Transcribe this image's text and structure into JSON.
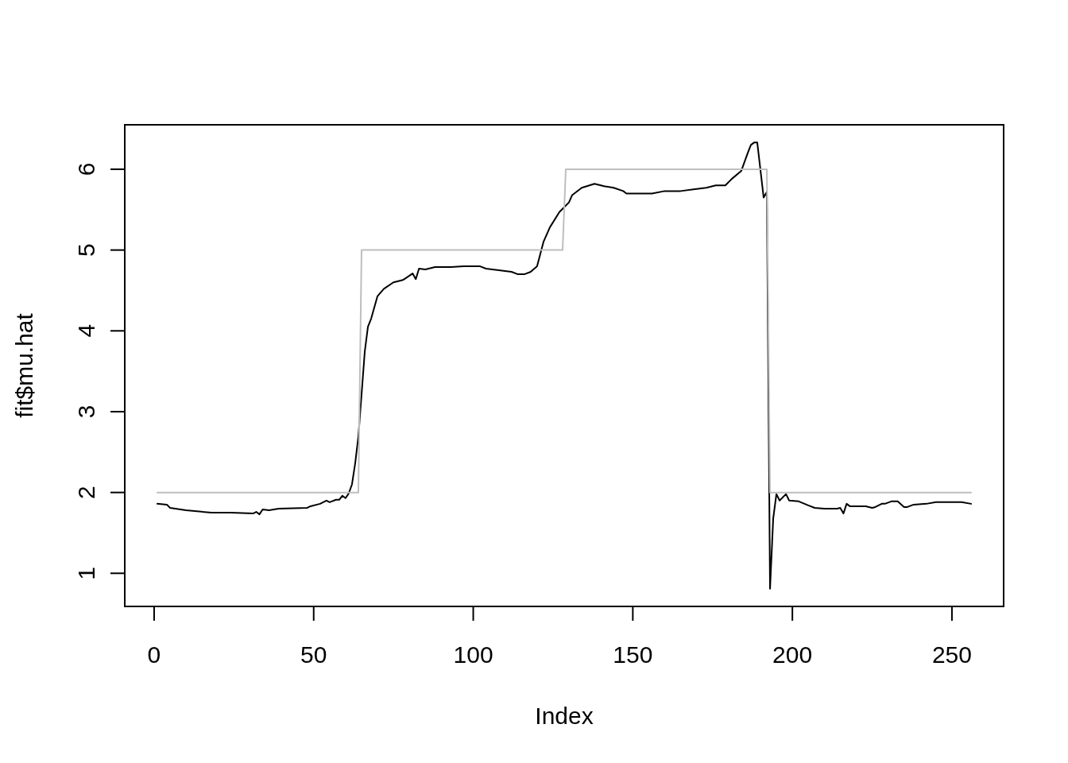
{
  "chart_data": {
    "type": "line",
    "xlabel": "Index",
    "ylabel": "fit$mu.hat",
    "xlim": [
      -9.2,
      266.2
    ],
    "ylim": [
      0.59,
      6.55
    ],
    "xticks": [
      0,
      50,
      100,
      150,
      200,
      250
    ],
    "yticks": [
      1,
      2,
      3,
      4,
      5,
      6
    ],
    "series": [
      {
        "color": "#000000",
        "x": [
          1,
          4,
          5,
          10,
          18,
          24,
          31,
          32,
          33,
          34,
          36,
          39,
          48,
          49,
          52,
          54,
          55,
          57,
          58,
          59,
          60,
          61,
          62,
          63,
          64,
          65,
          66,
          67,
          68,
          70,
          72,
          75,
          78,
          81,
          82,
          83,
          85,
          88,
          93,
          97,
          102,
          104,
          110,
          112,
          114,
          116,
          118,
          120,
          121,
          122,
          124,
          127,
          130,
          131,
          134,
          138,
          141,
          144,
          147,
          148,
          151,
          156,
          160,
          165,
          169,
          173,
          176,
          179,
          181,
          184,
          186,
          187,
          188,
          189,
          191,
          192,
          193,
          194,
          195,
          196,
          198,
          199,
          202,
          205,
          207,
          210,
          214,
          215,
          216,
          217,
          218,
          223,
          225,
          226,
          228,
          229,
          231,
          233,
          235,
          236,
          238,
          242,
          245,
          250,
          253,
          256
        ],
        "values": [
          1.86,
          1.85,
          1.81,
          1.78,
          1.75,
          1.75,
          1.74,
          1.76,
          1.73,
          1.79,
          1.78,
          1.8,
          1.81,
          1.83,
          1.86,
          1.9,
          1.88,
          1.91,
          1.91,
          1.96,
          1.93,
          1.99,
          2.1,
          2.36,
          2.69,
          3.21,
          3.74,
          4.05,
          4.15,
          4.43,
          4.52,
          4.6,
          4.63,
          4.71,
          4.64,
          4.77,
          4.76,
          4.79,
          4.79,
          4.8,
          4.8,
          4.77,
          4.74,
          4.73,
          4.7,
          4.7,
          4.73,
          4.8,
          4.95,
          5.1,
          5.28,
          5.47,
          5.59,
          5.68,
          5.77,
          5.82,
          5.79,
          5.77,
          5.73,
          5.7,
          5.7,
          5.7,
          5.73,
          5.73,
          5.75,
          5.77,
          5.8,
          5.8,
          5.88,
          5.98,
          6.2,
          6.3,
          6.33,
          6.33,
          5.65,
          5.72,
          0.81,
          1.68,
          1.98,
          1.9,
          1.98,
          1.9,
          1.89,
          1.84,
          1.81,
          1.8,
          1.8,
          1.81,
          1.74,
          1.86,
          1.83,
          1.83,
          1.81,
          1.82,
          1.86,
          1.86,
          1.89,
          1.89,
          1.82,
          1.82,
          1.85,
          1.86,
          1.88,
          1.88,
          1.88,
          1.86
        ]
      },
      {
        "color": "#bebebe",
        "x": [
          1,
          64,
          65,
          128,
          129,
          192,
          193,
          256
        ],
        "values": [
          2,
          2,
          5,
          5,
          6,
          6,
          2,
          2
        ]
      }
    ]
  }
}
